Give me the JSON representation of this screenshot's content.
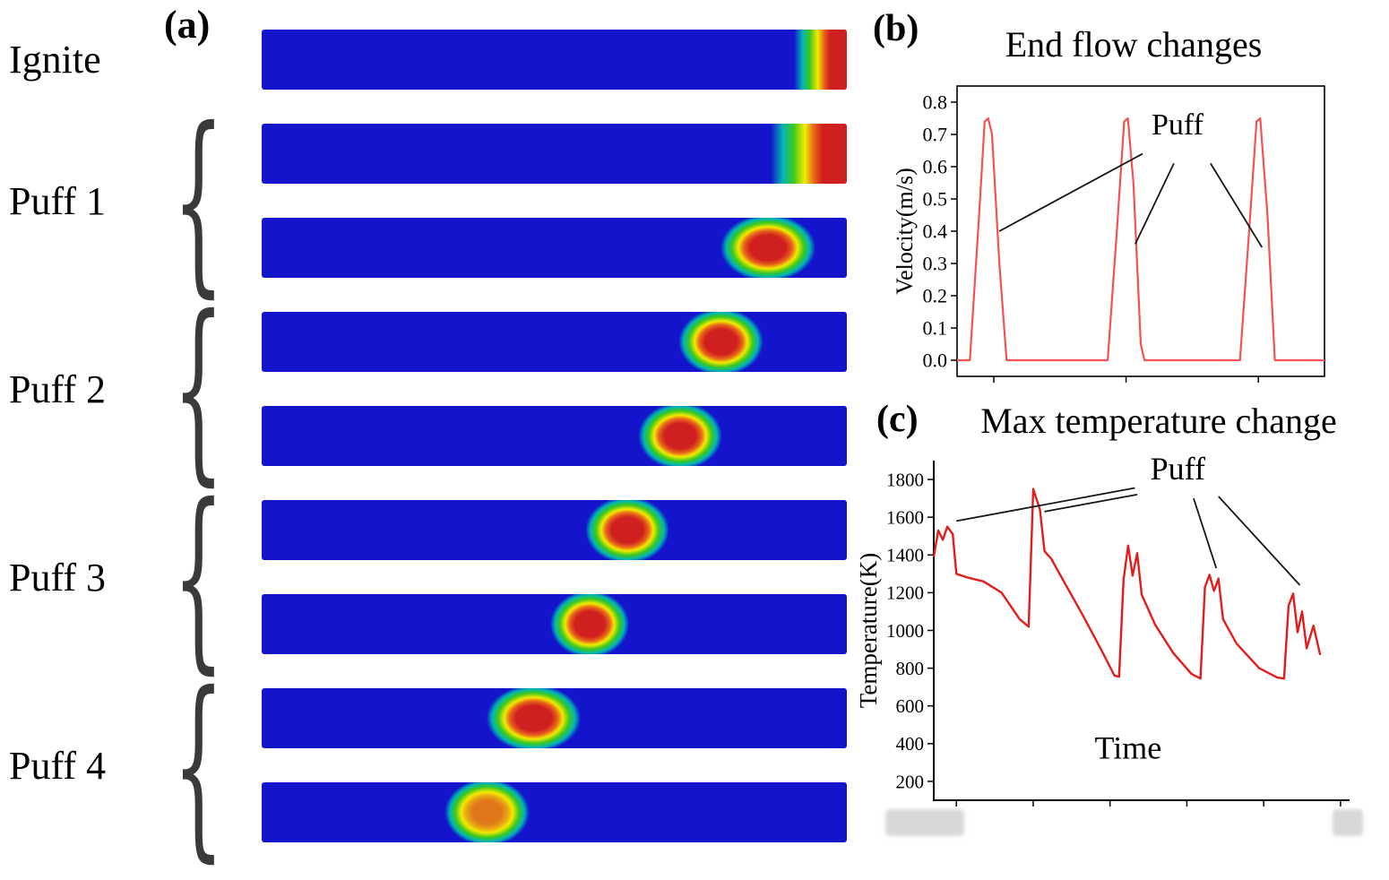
{
  "figure": {
    "panel_a": {
      "label": "(a)",
      "groups": [
        {
          "label": "Ignite",
          "bars": [
            {
              "flame": {
                "type": "edge",
                "width_pct": 9
              }
            }
          ]
        },
        {
          "label": "Puff 1",
          "bars": [
            {
              "flame": {
                "type": "edge",
                "width_pct": 13
              }
            },
            {
              "flame": {
                "type": "blob",
                "center_pct": 86.5,
                "width_pct": 18
              }
            }
          ]
        },
        {
          "label": "Puff 2",
          "bars": [
            {
              "flame": {
                "type": "blob",
                "center_pct": 78.5,
                "width_pct": 16
              }
            },
            {
              "flame": {
                "type": "blob",
                "center_pct": 71.5,
                "width_pct": 16
              }
            }
          ]
        },
        {
          "label": "Puff 3",
          "bars": [
            {
              "flame": {
                "type": "blob",
                "center_pct": 62.5,
                "width_pct": 16
              }
            },
            {
              "flame": {
                "type": "blob",
                "center_pct": 56,
                "width_pct": 15
              }
            }
          ]
        },
        {
          "label": "Puff 4",
          "bars": [
            {
              "flame": {
                "type": "blob",
                "center_pct": 46.5,
                "width_pct": 18
              }
            },
            {
              "flame": {
                "type": "blob",
                "center_pct": 38.5,
                "width_pct": 16,
                "core": "#e0761a"
              }
            }
          ]
        }
      ],
      "colors": {
        "tube_blue": "#1414cd",
        "flame_red": "#cf1f1f"
      }
    }
  },
  "chart_data": [
    {
      "id": "chart-b",
      "type": "line",
      "panel_label": "(b)",
      "title": "End flow changes",
      "ylabel": "Velocity(m/s)",
      "xlabel": "",
      "xlim": [
        0,
        10
      ],
      "ylim": [
        -0.05,
        0.85
      ],
      "yticks": [
        0.0,
        0.1,
        0.2,
        0.3,
        0.4,
        0.5,
        0.6,
        0.7,
        0.8
      ],
      "ytick_labels": [
        "0.0",
        "0.1",
        "0.2",
        "0.3",
        "0.4",
        "0.5",
        "0.6",
        "0.7",
        "0.8"
      ],
      "xticks": [
        1.0,
        4.6,
        8.2
      ],
      "grid": false,
      "line_color": "#f25353",
      "series": [
        {
          "name": "end-flow-velocity",
          "points": [
            [
              0,
              0
            ],
            [
              0.35,
              0
            ],
            [
              0.6,
              0.45
            ],
            [
              0.75,
              0.74
            ],
            [
              0.85,
              0.75
            ],
            [
              0.95,
              0.7
            ],
            [
              1.15,
              0.3
            ],
            [
              1.35,
              0
            ],
            [
              4.1,
              0
            ],
            [
              4.35,
              0.4
            ],
            [
              4.55,
              0.74
            ],
            [
              4.65,
              0.75
            ],
            [
              4.8,
              0.55
            ],
            [
              5.0,
              0.05
            ],
            [
              5.1,
              0
            ],
            [
              7.7,
              0
            ],
            [
              7.95,
              0.4
            ],
            [
              8.15,
              0.74
            ],
            [
              8.25,
              0.75
            ],
            [
              8.45,
              0.45
            ],
            [
              8.65,
              0
            ],
            [
              10,
              0
            ]
          ]
        }
      ],
      "annotation": {
        "label": "Puff",
        "label_pos": [
          6.0,
          0.7
        ],
        "arrows": [
          {
            "from": [
              5.05,
              0.64
            ],
            "to": [
              1.15,
              0.4
            ]
          },
          {
            "from": [
              5.9,
              0.61
            ],
            "to": [
              4.85,
              0.36
            ]
          },
          {
            "from": [
              6.9,
              0.61
            ],
            "to": [
              8.3,
              0.35
            ]
          }
        ]
      }
    },
    {
      "id": "chart-c",
      "type": "line",
      "panel_label": "(c)",
      "title": "Max temperature change",
      "ylabel": "Temperature(K)",
      "xlabel": "Time",
      "xlabel_pos": [
        4.3,
        320
      ],
      "xlim": [
        0,
        9.2
      ],
      "ylim": [
        100,
        1900
      ],
      "yticks": [
        200,
        400,
        600,
        800,
        1000,
        1200,
        1400,
        1600,
        1800
      ],
      "ytick_labels": [
        "200",
        "400",
        "600",
        "800",
        "1000",
        "1200",
        "1400",
        "1600",
        "1800"
      ],
      "xticks": [
        0.5,
        2.2,
        3.9,
        5.6,
        7.3,
        9.0
      ],
      "grid": false,
      "line_color": "#e31c1c",
      "series": [
        {
          "name": "max-temperature",
          "points": [
            [
              0,
              1390
            ],
            [
              0.1,
              1530
            ],
            [
              0.2,
              1480
            ],
            [
              0.3,
              1550
            ],
            [
              0.42,
              1510
            ],
            [
              0.5,
              1300
            ],
            [
              0.75,
              1280
            ],
            [
              1.1,
              1260
            ],
            [
              1.5,
              1200
            ],
            [
              1.9,
              1060
            ],
            [
              2.1,
              1020
            ],
            [
              2.2,
              1750
            ],
            [
              2.35,
              1640
            ],
            [
              2.45,
              1420
            ],
            [
              2.6,
              1380
            ],
            [
              2.9,
              1250
            ],
            [
              3.3,
              1080
            ],
            [
              3.7,
              900
            ],
            [
              4.0,
              760
            ],
            [
              4.1,
              755
            ],
            [
              4.2,
              1270
            ],
            [
              4.3,
              1450
            ],
            [
              4.4,
              1290
            ],
            [
              4.5,
              1410
            ],
            [
              4.6,
              1190
            ],
            [
              4.9,
              1030
            ],
            [
              5.3,
              880
            ],
            [
              5.7,
              770
            ],
            [
              5.9,
              745
            ],
            [
              6.0,
              1230
            ],
            [
              6.1,
              1295
            ],
            [
              6.2,
              1210
            ],
            [
              6.3,
              1275
            ],
            [
              6.4,
              1060
            ],
            [
              6.7,
              930
            ],
            [
              7.2,
              800
            ],
            [
              7.6,
              750
            ],
            [
              7.75,
              745
            ],
            [
              7.85,
              1130
            ],
            [
              7.95,
              1195
            ],
            [
              8.05,
              990
            ],
            [
              8.15,
              1100
            ],
            [
              8.25,
              905
            ],
            [
              8.4,
              1025
            ],
            [
              8.55,
              870
            ]
          ]
        }
      ],
      "annotation": {
        "label": "Puff",
        "label_pos": [
          5.4,
          1800
        ],
        "arrows": [
          {
            "from": [
              4.45,
              1755
            ],
            "to": [
              0.5,
              1580
            ]
          },
          {
            "from": [
              4.5,
              1720
            ],
            "to": [
              2.45,
              1630
            ]
          },
          {
            "from": [
              5.75,
              1700
            ],
            "to": [
              6.25,
              1330
            ]
          },
          {
            "from": [
              6.3,
              1710
            ],
            "to": [
              8.1,
              1240
            ]
          }
        ]
      }
    }
  ]
}
